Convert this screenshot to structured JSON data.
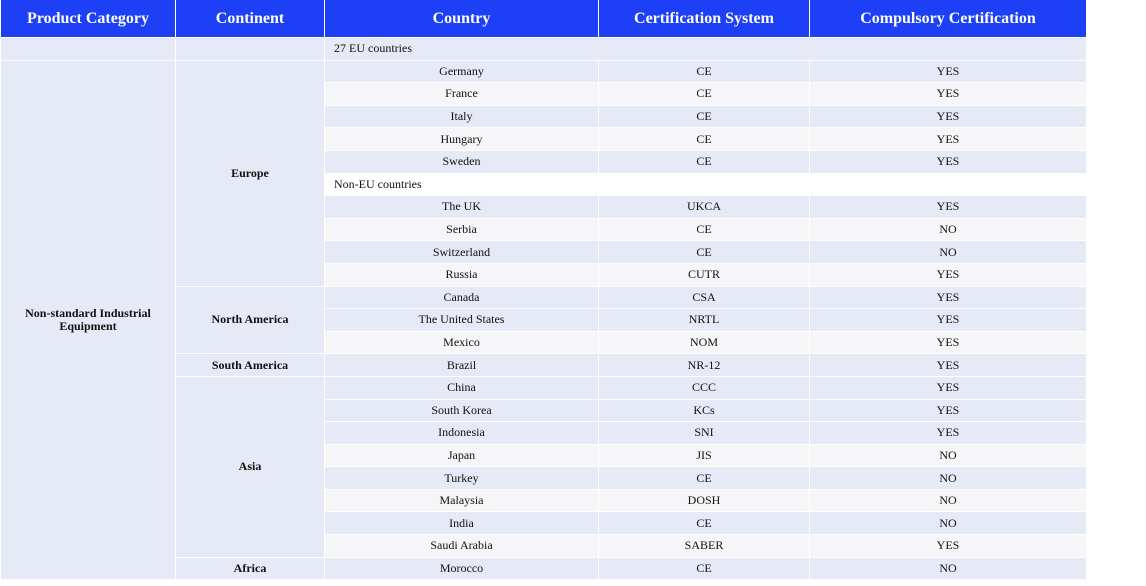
{
  "headers": {
    "product_category": "Product Category",
    "continent": "Continent",
    "country": "Country",
    "certification_system": "Certification System",
    "compulsory_certification": "Compulsory Certification"
  },
  "product_category": "Non-standard Industrial Equipment",
  "continents": {
    "europe": "Europe",
    "north_america": "North America",
    "south_america": "South America",
    "asia": "Asia",
    "africa": "Africa"
  },
  "subheadings": {
    "eu": "27 EU countries",
    "non_eu": "Non-EU countries"
  },
  "rows": [
    {
      "country": "Germany",
      "system": "CE",
      "compulsory": "YES"
    },
    {
      "country": "France",
      "system": "CE",
      "compulsory": "YES"
    },
    {
      "country": "Italy",
      "system": "CE",
      "compulsory": "YES"
    },
    {
      "country": "Hungary",
      "system": "CE",
      "compulsory": "YES"
    },
    {
      "country": "Sweden",
      "system": "CE",
      "compulsory": "YES"
    },
    {
      "country": "The UK",
      "system": "UKCA",
      "compulsory": "YES"
    },
    {
      "country": "Serbia",
      "system": "CE",
      "compulsory": "NO"
    },
    {
      "country": "Switzerland",
      "system": "CE",
      "compulsory": "NO"
    },
    {
      "country": "Russia",
      "system": "CUTR",
      "compulsory": "YES"
    },
    {
      "country": "Canada",
      "system": "CSA",
      "compulsory": "YES"
    },
    {
      "country": "The United States",
      "system": "NRTL",
      "compulsory": "YES"
    },
    {
      "country": "Mexico",
      "system": "NOM",
      "compulsory": "YES"
    },
    {
      "country": "Brazil",
      "system": "NR-12",
      "compulsory": "YES"
    },
    {
      "country": "China",
      "system": "CCC",
      "compulsory": "YES"
    },
    {
      "country": "South Korea",
      "system": "KCs",
      "compulsory": "YES"
    },
    {
      "country": "Indonesia",
      "system": "SNI",
      "compulsory": "YES"
    },
    {
      "country": "Japan",
      "system": "JIS",
      "compulsory": "NO"
    },
    {
      "country": "Turkey",
      "system": "CE",
      "compulsory": "NO"
    },
    {
      "country": "Malaysia",
      "system": "DOSH",
      "compulsory": "NO"
    },
    {
      "country": "India",
      "system": "CE",
      "compulsory": "NO"
    },
    {
      "country": "Saudi Arabia",
      "system": "SABER",
      "compulsory": "YES"
    },
    {
      "country": "Morocco",
      "system": "CE",
      "compulsory": "NO"
    }
  ],
  "colors": {
    "header_bg": "#1d3ff5",
    "header_text": "#ffffff",
    "row_band_a": "#e6e9f6",
    "row_band_b": "#f6f6f9"
  }
}
